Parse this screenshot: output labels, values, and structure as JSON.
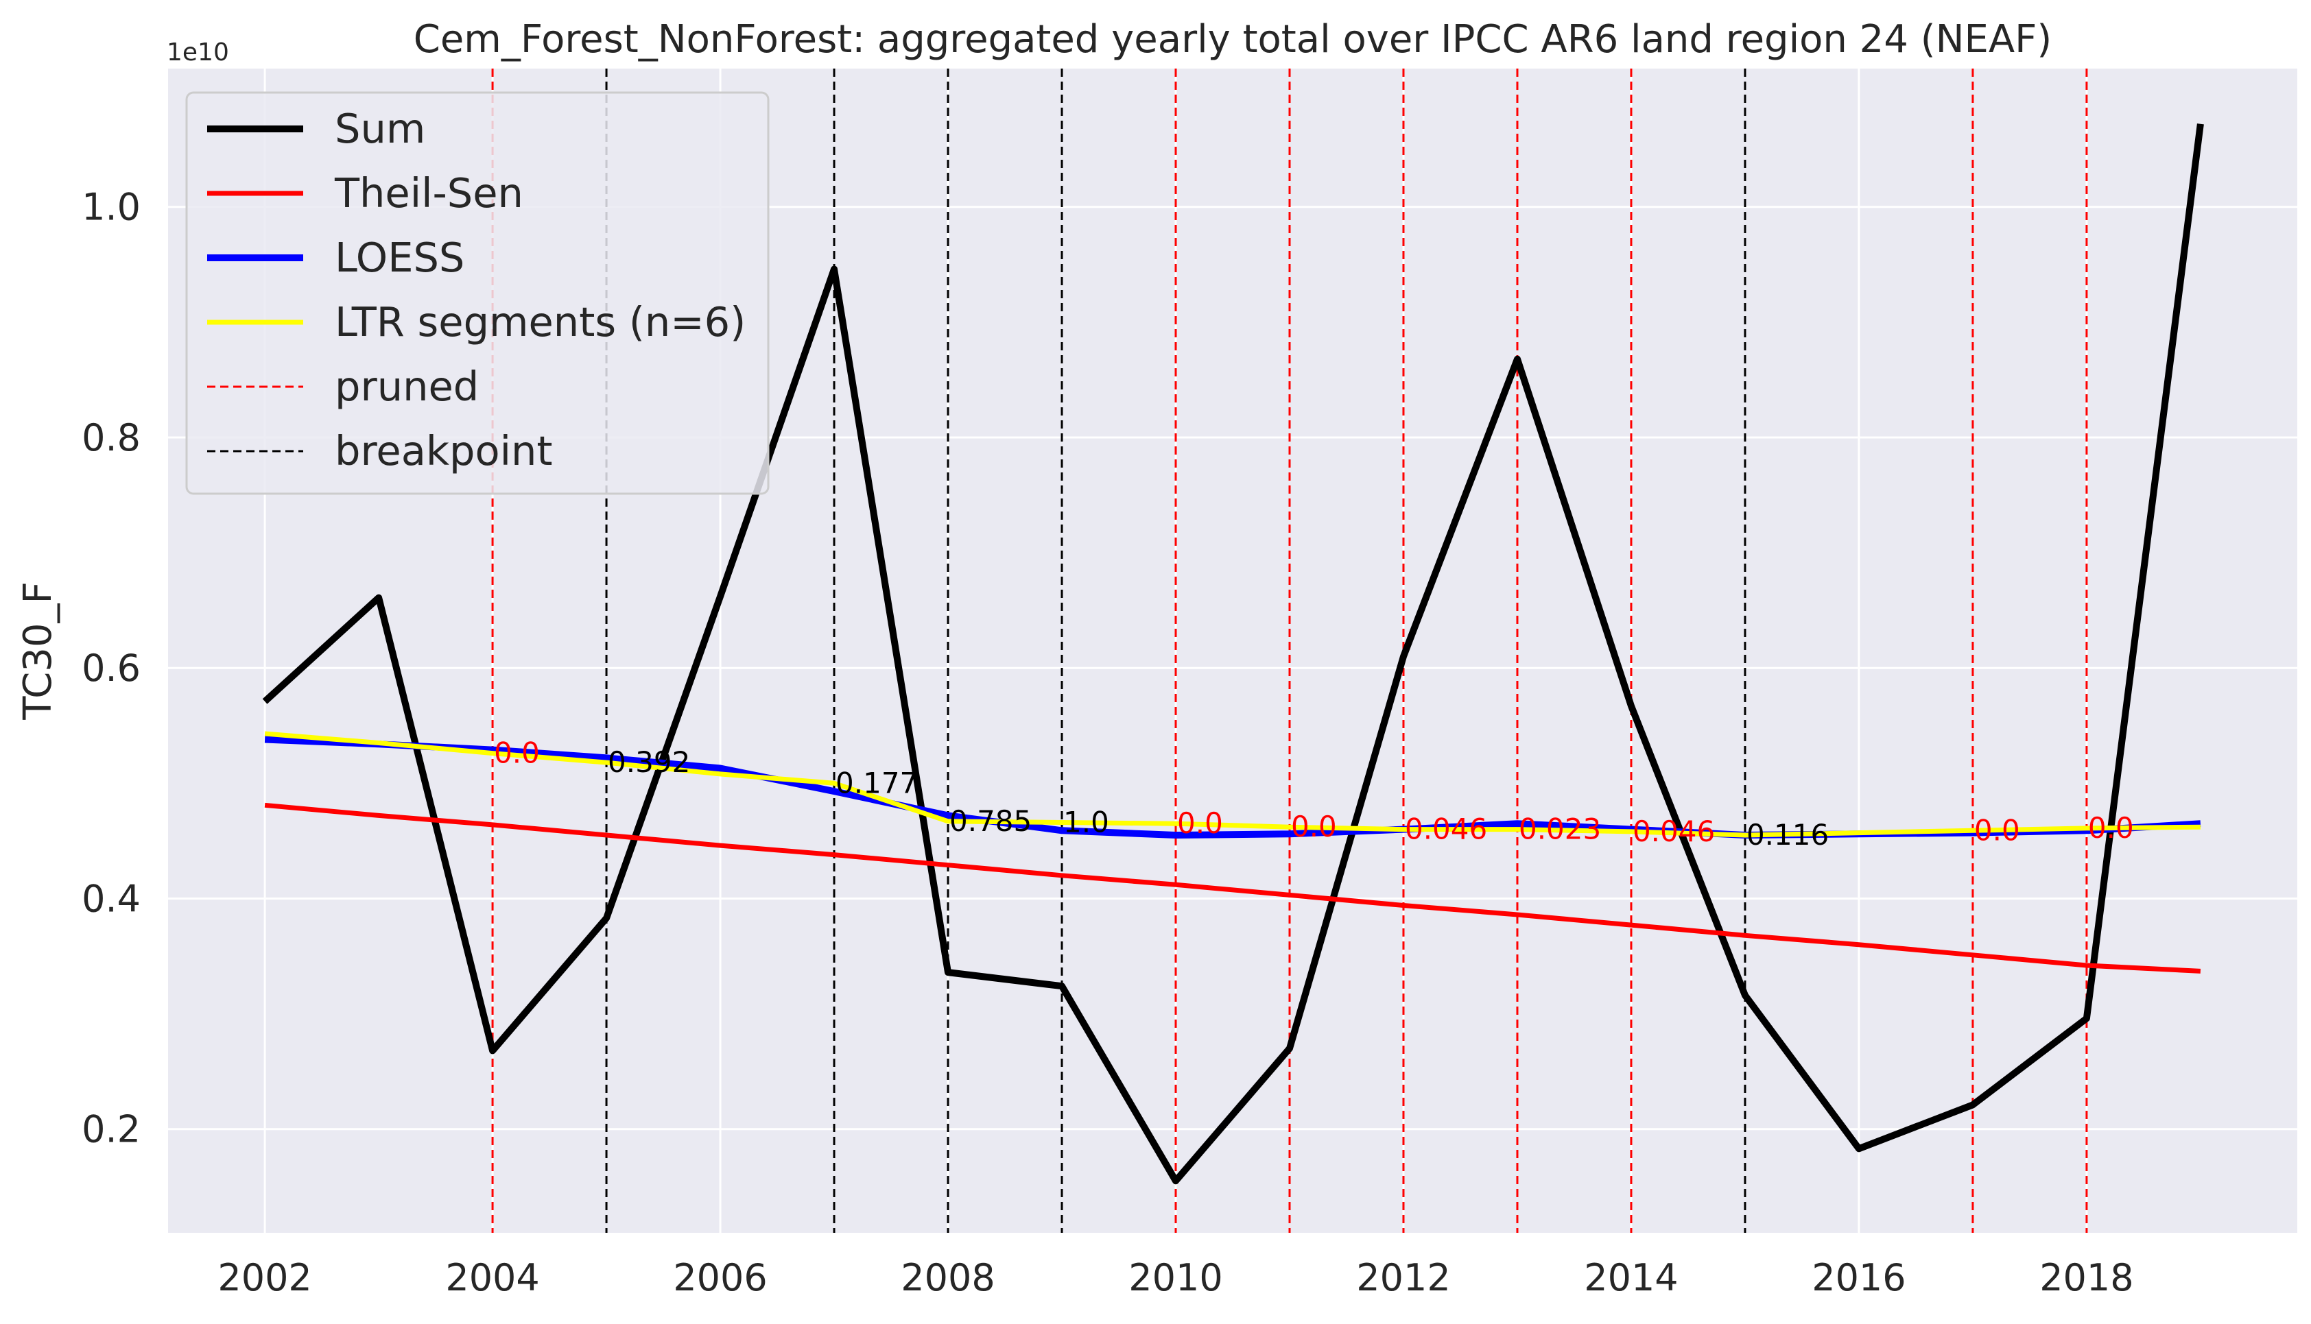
{
  "chart_data": {
    "type": "line",
    "title": "Cem_Forest_NonForest: aggregated yearly total over IPCC AR6 land region 24 (NEAF)",
    "xlabel": "",
    "ylabel": "TC30_F",
    "y_offset_label": "1e10",
    "x": [
      2002,
      2003,
      2004,
      2005,
      2006,
      2007,
      2008,
      2009,
      2010,
      2011,
      2012,
      2013,
      2014,
      2015,
      2016,
      2017,
      2018,
      2019
    ],
    "xlim": [
      2001.15,
      2019.85
    ],
    "ylim": [
      0.11,
      1.12
    ],
    "x_ticks": [
      2002,
      2004,
      2006,
      2008,
      2010,
      2012,
      2014,
      2016,
      2018
    ],
    "x_tick_labels": [
      "2002",
      "2004",
      "2006",
      "2008",
      "2010",
      "2012",
      "2014",
      "2016",
      "2018"
    ],
    "y_ticks": [
      0.2,
      0.4,
      0.6,
      0.8,
      1.0
    ],
    "y_tick_labels": [
      "0.2",
      "0.4",
      "0.6",
      "0.8",
      "1.0"
    ],
    "grid": true,
    "legend_position": "top-left",
    "series": [
      {
        "name": "Sum",
        "color": "#000000",
        "style": "solid",
        "values": [
          0.571,
          0.661,
          0.268,
          0.383,
          0.662,
          0.946,
          0.336,
          0.324,
          0.155,
          0.27,
          0.61,
          0.868,
          0.567,
          0.316,
          0.183,
          0.221,
          0.296,
          1.072
        ]
      },
      {
        "name": "Theil-Sen",
        "color": "#ff0000",
        "style": "solid",
        "values": [
          0.481,
          0.472,
          0.464,
          0.455,
          0.446,
          0.438,
          0.429,
          0.42,
          0.412,
          0.403,
          0.394,
          0.386,
          0.377,
          0.368,
          0.36,
          0.351,
          0.342,
          0.337
        ]
      },
      {
        "name": "LOESS",
        "color": "#0000ff",
        "style": "solid",
        "values": [
          0.538,
          0.534,
          0.529,
          0.522,
          0.513,
          0.493,
          0.472,
          0.459,
          0.455,
          0.456,
          0.46,
          0.465,
          0.46,
          0.455,
          0.456,
          0.457,
          0.459,
          0.465
        ]
      },
      {
        "name": "LTR segments (n=6)",
        "color": "#ffff00",
        "style": "solid",
        "values": [
          0.543,
          0.535,
          0.526,
          0.518,
          0.508,
          0.5,
          0.467,
          0.466,
          0.465,
          0.462,
          0.46,
          0.46,
          0.458,
          0.455,
          0.457,
          0.459,
          0.461,
          0.462
        ]
      }
    ],
    "vlines": [
      {
        "x": 2004,
        "kind": "pruned",
        "label": "0.0",
        "label_y": 0.526
      },
      {
        "x": 2005,
        "kind": "breakpoint",
        "label": "0.392",
        "label_y": 0.518
      },
      {
        "x": 2007,
        "kind": "breakpoint",
        "label": "0.177",
        "label_y": 0.5
      },
      {
        "x": 2008,
        "kind": "breakpoint",
        "label": "0.785",
        "label_y": 0.467
      },
      {
        "x": 2009,
        "kind": "breakpoint",
        "label": "1.0",
        "label_y": 0.466
      },
      {
        "x": 2010,
        "kind": "pruned",
        "label": "0.0",
        "label_y": 0.465
      },
      {
        "x": 2011,
        "kind": "pruned",
        "label": "0.0",
        "label_y": 0.462
      },
      {
        "x": 2012,
        "kind": "pruned",
        "label": "0.046",
        "label_y": 0.46
      },
      {
        "x": 2013,
        "kind": "pruned",
        "label": "0.023",
        "label_y": 0.46
      },
      {
        "x": 2014,
        "kind": "pruned",
        "label": "0.046",
        "label_y": 0.458
      },
      {
        "x": 2015,
        "kind": "breakpoint",
        "label": "0.116",
        "label_y": 0.455
      },
      {
        "x": 2017,
        "kind": "pruned",
        "label": "0.0",
        "label_y": 0.459
      },
      {
        "x": 2018,
        "kind": "pruned",
        "label": "0.0",
        "label_y": 0.461
      }
    ],
    "legend": [
      {
        "label": "Sum",
        "color": "#000000",
        "style": "solid"
      },
      {
        "label": "Theil-Sen",
        "color": "#ff0000",
        "style": "solid"
      },
      {
        "label": "LOESS",
        "color": "#0000ff",
        "style": "solid"
      },
      {
        "label": "LTR segments (n=6)",
        "color": "#ffff00",
        "style": "solid"
      },
      {
        "label": "pruned",
        "color": "#ff0000",
        "style": "dashed"
      },
      {
        "label": "breakpoint",
        "color": "#000000",
        "style": "dashed"
      }
    ],
    "colors": {
      "plot_background": "#eaeaf2",
      "grid": "#ffffff",
      "pruned": "#ff0000",
      "breakpoint": "#000000"
    }
  }
}
